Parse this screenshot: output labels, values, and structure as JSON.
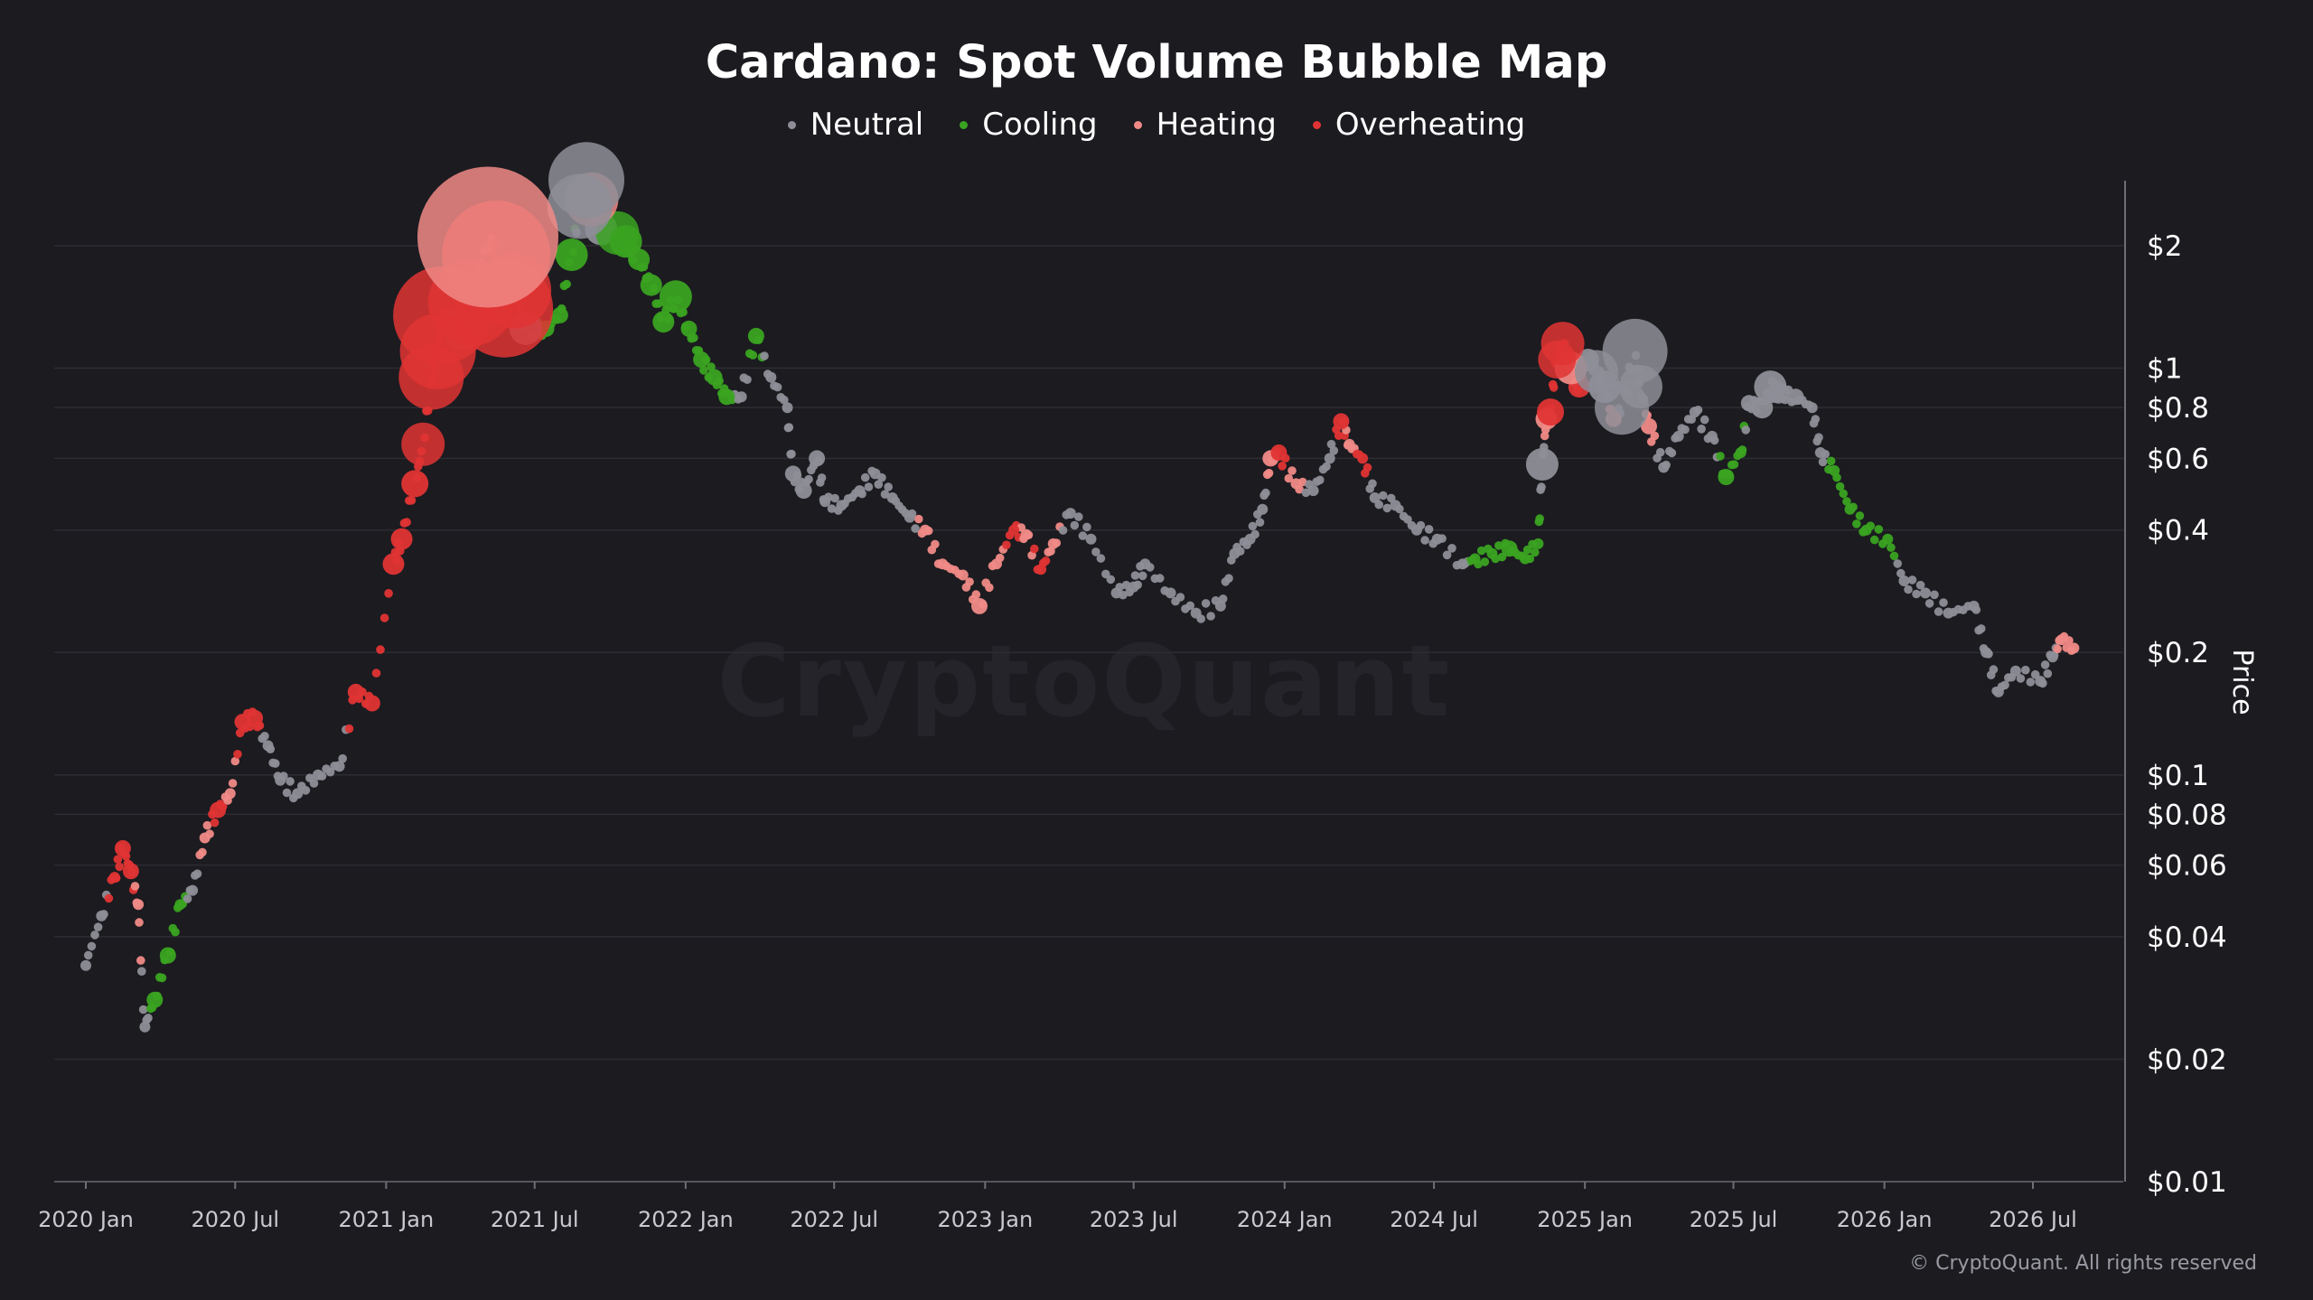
{
  "chart_data": {
    "type": "scatter",
    "title": "Cardano: Spot Volume Bubble Map",
    "ylabel": "Price",
    "xlabel": "",
    "y_scale": "log",
    "ylim": [
      0.01,
      3
    ],
    "xlim": [
      "2019-12-20",
      "2026-10-15"
    ],
    "grid": true,
    "legend_position": "top-center",
    "y_ticks": [
      {
        "value": 2,
        "label": "$2"
      },
      {
        "value": 1,
        "label": "$1"
      },
      {
        "value": 0.8,
        "label": "$0.8"
      },
      {
        "value": 0.6,
        "label": "$0.6"
      },
      {
        "value": 0.4,
        "label": "$0.4"
      },
      {
        "value": 0.2,
        "label": "$0.2"
      },
      {
        "value": 0.1,
        "label": "$0.1"
      },
      {
        "value": 0.08,
        "label": "$0.08"
      },
      {
        "value": 0.06,
        "label": "$0.06"
      },
      {
        "value": 0.04,
        "label": "$0.04"
      },
      {
        "value": 0.02,
        "label": "$0.02"
      },
      {
        "value": 0.01,
        "label": "$0.01"
      }
    ],
    "x_ticks": [
      {
        "date": "2020-01-01",
        "label": "2020 Jan"
      },
      {
        "date": "2020-07-01",
        "label": "2020 Jul"
      },
      {
        "date": "2021-01-01",
        "label": "2021 Jan"
      },
      {
        "date": "2021-07-01",
        "label": "2021 Jul"
      },
      {
        "date": "2022-01-01",
        "label": "2022 Jan"
      },
      {
        "date": "2022-07-01",
        "label": "2022 Jul"
      },
      {
        "date": "2023-01-01",
        "label": "2023 Jan"
      },
      {
        "date": "2023-07-01",
        "label": "2023 Jul"
      },
      {
        "date": "2024-01-01",
        "label": "2024 Jan"
      },
      {
        "date": "2024-07-01",
        "label": "2024 Jul"
      },
      {
        "date": "2025-01-01",
        "label": "2025 Jan"
      },
      {
        "date": "2025-07-01",
        "label": "2025 Jul"
      },
      {
        "date": "2026-01-01",
        "label": "2026 Jan"
      },
      {
        "date": "2026-07-01",
        "label": "2026 Jul"
      }
    ],
    "series": [
      {
        "name": "Neutral",
        "color": "#8e8e98"
      },
      {
        "name": "Cooling",
        "color": "#3aa321"
      },
      {
        "name": "Heating",
        "color": "#f08a86"
      },
      {
        "name": "Overheating",
        "color": "#e03434"
      }
    ],
    "points": [
      [
        "2020-01-01",
        0.034,
        "Neutral",
        1
      ],
      [
        "2020-01-20",
        0.045,
        "Neutral",
        1
      ],
      [
        "2020-02-05",
        0.056,
        "Overheating",
        1
      ],
      [
        "2020-02-15",
        0.066,
        "Overheating",
        1.5
      ],
      [
        "2020-02-25",
        0.058,
        "Overheating",
        1.5
      ],
      [
        "2020-03-05",
        0.048,
        "Heating",
        1
      ],
      [
        "2020-03-13",
        0.024,
        "Neutral",
        1
      ],
      [
        "2020-03-25",
        0.028,
        "Cooling",
        1.5
      ],
      [
        "2020-04-10",
        0.036,
        "Cooling",
        1.5
      ],
      [
        "2020-04-25",
        0.048,
        "Cooling",
        1
      ],
      [
        "2020-05-10",
        0.052,
        "Neutral",
        1
      ],
      [
        "2020-05-25",
        0.07,
        "Heating",
        1
      ],
      [
        "2020-06-10",
        0.082,
        "Overheating",
        1.5
      ],
      [
        "2020-06-25",
        0.09,
        "Heating",
        1
      ],
      [
        "2020-07-10",
        0.135,
        "Overheating",
        1.5
      ],
      [
        "2020-07-25",
        0.138,
        "Overheating",
        1.5
      ],
      [
        "2020-08-10",
        0.118,
        "Neutral",
        1
      ],
      [
        "2020-08-25",
        0.097,
        "Neutral",
        1
      ],
      [
        "2020-09-15",
        0.09,
        "Neutral",
        1
      ],
      [
        "2020-10-10",
        0.1,
        "Neutral",
        1
      ],
      [
        "2020-11-05",
        0.105,
        "Neutral",
        1
      ],
      [
        "2020-11-25",
        0.16,
        "Overheating",
        1.5
      ],
      [
        "2020-12-15",
        0.15,
        "Overheating",
        1.5
      ],
      [
        "2021-01-10",
        0.33,
        "Overheating",
        2
      ],
      [
        "2021-01-20",
        0.38,
        "Overheating",
        2
      ],
      [
        "2021-02-05",
        0.52,
        "Overheating",
        2.5
      ],
      [
        "2021-02-15",
        0.65,
        "Overheating",
        4
      ],
      [
        "2021-02-25",
        0.95,
        "Overheating",
        6
      ],
      [
        "2021-03-05",
        1.1,
        "Overheating",
        7
      ],
      [
        "2021-03-10",
        1.35,
        "Overheating",
        9
      ],
      [
        "2021-04-05",
        1.25,
        "Neutral",
        4
      ],
      [
        "2021-04-15",
        1.45,
        "Overheating",
        8
      ],
      [
        "2021-05-05",
        2.1,
        "Heating",
        13
      ],
      [
        "2021-05-15",
        1.9,
        "Overheating",
        10
      ],
      [
        "2021-05-25",
        1.4,
        "Overheating",
        9
      ],
      [
        "2021-06-05",
        1.55,
        "Overheating",
        7
      ],
      [
        "2021-06-20",
        1.25,
        "Neutral",
        3
      ],
      [
        "2021-07-15",
        1.25,
        "Cooling",
        1.5
      ],
      [
        "2021-08-01",
        1.35,
        "Cooling",
        1.5
      ],
      [
        "2021-08-15",
        1.9,
        "Cooling",
        3
      ],
      [
        "2021-08-25",
        2.5,
        "Neutral",
        6
      ],
      [
        "2021-09-02",
        2.9,
        "Neutral",
        7
      ],
      [
        "2021-09-08",
        2.6,
        "Heating",
        5
      ],
      [
        "2021-09-20",
        2.2,
        "Neutral",
        3
      ],
      [
        "2021-10-10",
        2.15,
        "Cooling",
        4
      ],
      [
        "2021-10-20",
        2.05,
        "Cooling",
        3
      ],
      [
        "2021-11-05",
        1.85,
        "Cooling",
        2
      ],
      [
        "2021-11-20",
        1.6,
        "Cooling",
        2
      ],
      [
        "2021-12-05",
        1.3,
        "Cooling",
        2
      ],
      [
        "2021-12-20",
        1.5,
        "Cooling",
        3
      ],
      [
        "2022-01-05",
        1.25,
        "Cooling",
        1.5
      ],
      [
        "2022-01-20",
        1.05,
        "Cooling",
        1.5
      ],
      [
        "2022-02-05",
        0.95,
        "Cooling",
        1.5
      ],
      [
        "2022-02-20",
        0.85,
        "Cooling",
        1.5
      ],
      [
        "2022-03-10",
        0.85,
        "Neutral",
        1
      ],
      [
        "2022-03-28",
        1.2,
        "Cooling",
        1.5
      ],
      [
        "2022-04-15",
        0.95,
        "Neutral",
        1
      ],
      [
        "2022-05-05",
        0.8,
        "Neutral",
        1
      ],
      [
        "2022-05-12",
        0.55,
        "Neutral",
        1.5
      ],
      [
        "2022-05-25",
        0.5,
        "Neutral",
        1.5
      ],
      [
        "2022-06-10",
        0.6,
        "Neutral",
        1.5
      ],
      [
        "2022-06-20",
        0.47,
        "Neutral",
        1
      ],
      [
        "2022-07-10",
        0.46,
        "Neutral",
        1
      ],
      [
        "2022-08-01",
        0.5,
        "Neutral",
        1
      ],
      [
        "2022-08-20",
        0.55,
        "Neutral",
        1
      ],
      [
        "2022-09-10",
        0.48,
        "Neutral",
        1
      ],
      [
        "2022-10-01",
        0.43,
        "Neutral",
        1
      ],
      [
        "2022-10-20",
        0.4,
        "Heating",
        1
      ],
      [
        "2022-11-10",
        0.33,
        "Heating",
        1
      ],
      [
        "2022-12-05",
        0.31,
        "Heating",
        1
      ],
      [
        "2022-12-25",
        0.26,
        "Heating",
        1.5
      ],
      [
        "2023-01-15",
        0.33,
        "Heating",
        1
      ],
      [
        "2023-02-05",
        0.4,
        "Overheating",
        1
      ],
      [
        "2023-02-20",
        0.39,
        "Heating",
        1
      ],
      [
        "2023-03-10",
        0.32,
        "Overheating",
        1
      ],
      [
        "2023-03-25",
        0.37,
        "Heating",
        1
      ],
      [
        "2023-04-15",
        0.44,
        "Neutral",
        1
      ],
      [
        "2023-05-10",
        0.38,
        "Neutral",
        1
      ],
      [
        "2023-06-10",
        0.28,
        "Neutral",
        1
      ],
      [
        "2023-07-01",
        0.29,
        "Neutral",
        1
      ],
      [
        "2023-07-15",
        0.33,
        "Neutral",
        1
      ],
      [
        "2023-08-15",
        0.28,
        "Neutral",
        1
      ],
      [
        "2023-09-15",
        0.25,
        "Neutral",
        1
      ],
      [
        "2023-10-15",
        0.26,
        "Neutral",
        1
      ],
      [
        "2023-11-01",
        0.35,
        "Neutral",
        1
      ],
      [
        "2023-11-20",
        0.38,
        "Neutral",
        1
      ],
      [
        "2023-12-05",
        0.45,
        "Neutral",
        1
      ],
      [
        "2023-12-15",
        0.6,
        "Heating",
        1.5
      ],
      [
        "2023-12-25",
        0.62,
        "Overheating",
        1.5
      ],
      [
        "2024-01-15",
        0.52,
        "Heating",
        1
      ],
      [
        "2024-02-05",
        0.5,
        "Neutral",
        1
      ],
      [
        "2024-02-25",
        0.6,
        "Neutral",
        1
      ],
      [
        "2024-03-10",
        0.74,
        "Overheating",
        1.5
      ],
      [
        "2024-03-20",
        0.65,
        "Heating",
        1
      ],
      [
        "2024-04-05",
        0.6,
        "Overheating",
        1
      ],
      [
        "2024-04-20",
        0.48,
        "Neutral",
        1
      ],
      [
        "2024-05-15",
        0.46,
        "Neutral",
        1
      ],
      [
        "2024-06-10",
        0.4,
        "Neutral",
        1
      ],
      [
        "2024-07-05",
        0.38,
        "Neutral",
        1
      ],
      [
        "2024-08-05",
        0.33,
        "Neutral",
        1
      ],
      [
        "2024-08-20",
        0.34,
        "Cooling",
        1
      ],
      [
        "2024-09-10",
        0.35,
        "Cooling",
        1
      ],
      [
        "2024-10-01",
        0.36,
        "Cooling",
        1.5
      ],
      [
        "2024-10-20",
        0.34,
        "Cooling",
        1
      ],
      [
        "2024-11-05",
        0.37,
        "Cooling",
        1
      ],
      [
        "2024-11-10",
        0.58,
        "Neutral",
        3
      ],
      [
        "2024-11-15",
        0.75,
        "Heating",
        2
      ],
      [
        "2024-11-20",
        0.78,
        "Overheating",
        2.5
      ],
      [
        "2024-11-28",
        1.05,
        "Overheating",
        3.5
      ],
      [
        "2024-12-05",
        1.15,
        "Overheating",
        4
      ],
      [
        "2024-12-15",
        1.0,
        "Heating",
        3
      ],
      [
        "2024-12-25",
        0.9,
        "Overheating",
        2
      ],
      [
        "2025-01-05",
        1.05,
        "Neutral",
        2
      ],
      [
        "2025-01-15",
        0.98,
        "Neutral",
        4
      ],
      [
        "2025-01-25",
        0.9,
        "Neutral",
        3
      ],
      [
        "2025-02-05",
        0.75,
        "Heating",
        1.5
      ],
      [
        "2025-02-15",
        0.8,
        "Neutral",
        5
      ],
      [
        "2025-03-03",
        1.1,
        "Neutral",
        6
      ],
      [
        "2025-03-10",
        0.9,
        "Neutral",
        4
      ],
      [
        "2025-03-20",
        0.72,
        "Heating",
        1.5
      ],
      [
        "2025-04-07",
        0.57,
        "Neutral",
        1
      ],
      [
        "2025-04-25",
        0.68,
        "Neutral",
        1
      ],
      [
        "2025-05-15",
        0.78,
        "Neutral",
        1
      ],
      [
        "2025-06-05",
        0.68,
        "Neutral",
        1
      ],
      [
        "2025-06-22",
        0.54,
        "Cooling",
        1.5
      ],
      [
        "2025-07-10",
        0.62,
        "Cooling",
        1
      ],
      [
        "2025-07-20",
        0.82,
        "Neutral",
        1.5
      ],
      [
        "2025-08-05",
        0.8,
        "Neutral",
        2
      ],
      [
        "2025-08-15",
        0.9,
        "Neutral",
        3
      ],
      [
        "2025-08-25",
        0.87,
        "Neutral",
        2
      ],
      [
        "2025-09-15",
        0.85,
        "Neutral",
        1.5
      ],
      [
        "2025-10-05",
        0.8,
        "Neutral",
        1
      ],
      [
        "2025-10-15",
        0.62,
        "Neutral",
        1
      ],
      [
        "2025-11-01",
        0.56,
        "Cooling",
        1
      ],
      [
        "2025-11-20",
        0.45,
        "Cooling",
        1
      ],
      [
        "2025-12-10",
        0.4,
        "Cooling",
        1
      ],
      [
        "2026-01-05",
        0.38,
        "Cooling",
        1
      ],
      [
        "2026-01-25",
        0.3,
        "Neutral",
        1
      ],
      [
        "2026-02-20",
        0.28,
        "Neutral",
        1
      ],
      [
        "2026-03-20",
        0.25,
        "Neutral",
        1
      ],
      [
        "2026-04-20",
        0.26,
        "Neutral",
        1
      ],
      [
        "2026-05-05",
        0.2,
        "Neutral",
        1
      ],
      [
        "2026-05-20",
        0.16,
        "Neutral",
        1
      ],
      [
        "2026-06-10",
        0.18,
        "Neutral",
        1
      ],
      [
        "2026-07-10",
        0.17,
        "Neutral",
        1
      ],
      [
        "2026-07-25",
        0.195,
        "Neutral",
        1
      ],
      [
        "2026-08-05",
        0.215,
        "Heating",
        1
      ],
      [
        "2026-08-20",
        0.205,
        "Heating",
        1
      ]
    ]
  },
  "watermark": "CryptoQuant",
  "copyright": "© CryptoQuant. All rights reserved"
}
